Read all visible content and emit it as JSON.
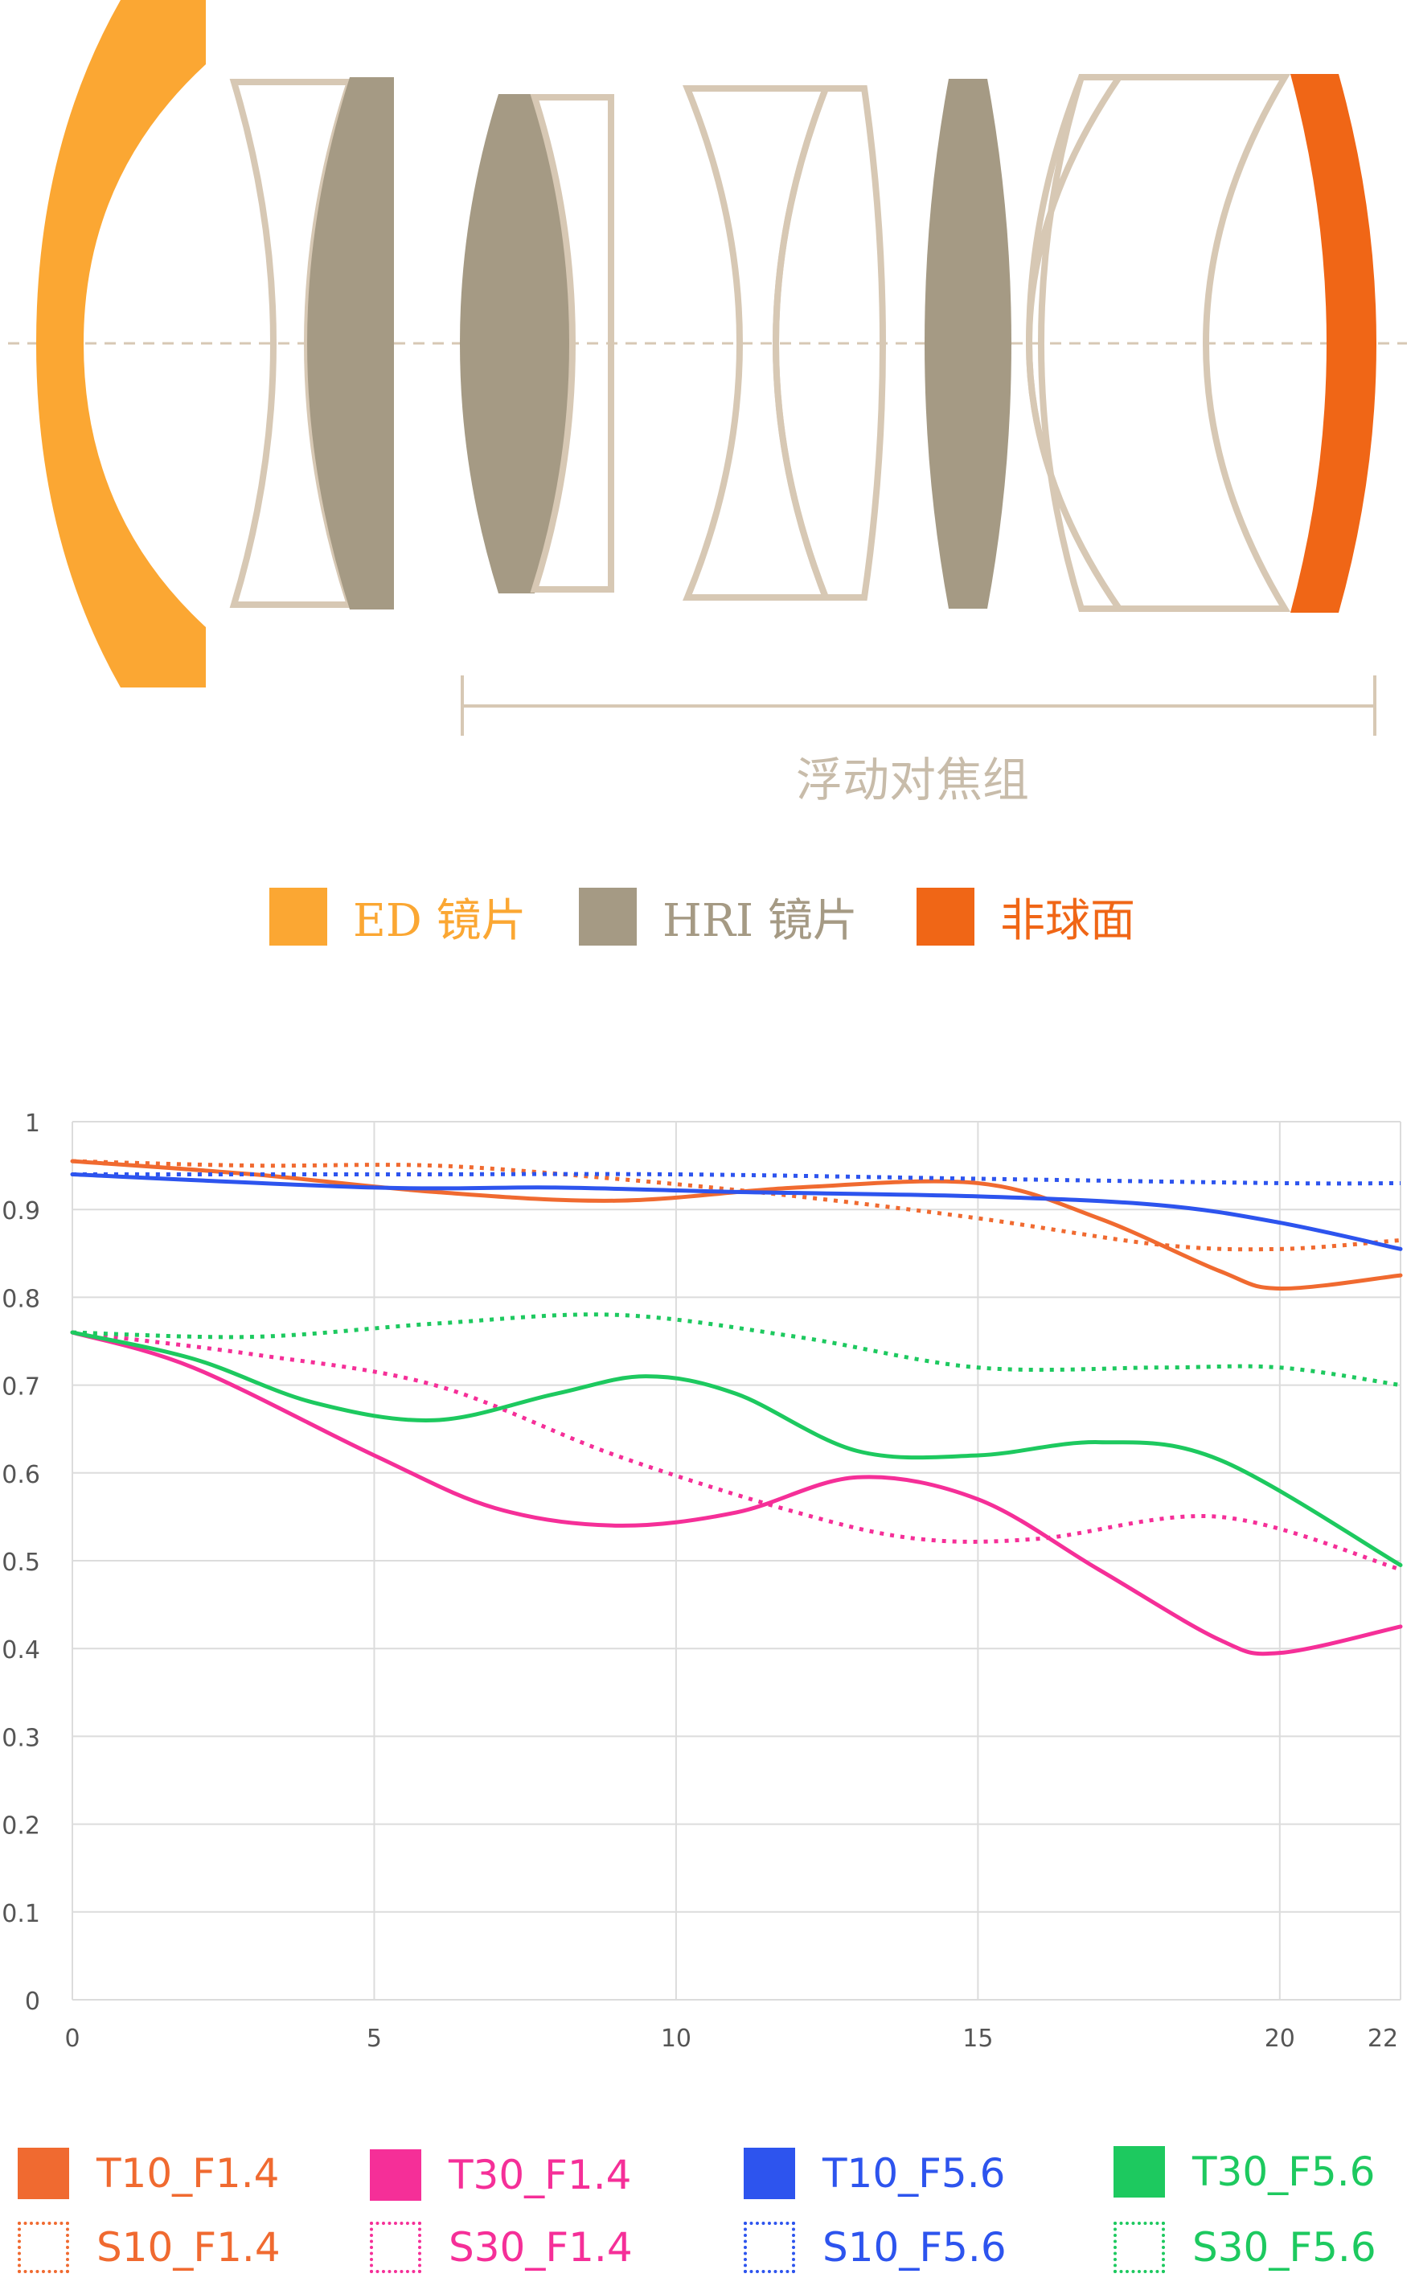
{
  "diagram": {
    "group_label": "浮动对焦组",
    "legend": [
      {
        "label": "ED 镜片",
        "color": "#fba733"
      },
      {
        "label": "HRI 镜片",
        "color": "#a59a84"
      },
      {
        "label": "非球面",
        "color": "#f06616"
      }
    ],
    "outline_color": "#d7c8b4"
  },
  "chart_data": {
    "type": "line",
    "x_ticks": [
      "0",
      "5",
      "10",
      "15",
      "20",
      "22"
    ],
    "y_ticks": [
      "0",
      "0.1",
      "0.2",
      "0.3",
      "0.4",
      "0.5",
      "0.6",
      "0.7",
      "0.8",
      "0.9",
      "1"
    ],
    "xlim": [
      0,
      22
    ],
    "ylim": [
      0,
      1
    ],
    "grid": true,
    "series": [
      {
        "name": "T10_F1.4",
        "color": "#f06a30",
        "style": "solid",
        "x": [
          0,
          3,
          6,
          9,
          12,
          15,
          17,
          19,
          20,
          22
        ],
        "y": [
          0.955,
          0.94,
          0.92,
          0.91,
          0.925,
          0.93,
          0.89,
          0.83,
          0.81,
          0.825
        ]
      },
      {
        "name": "S10_F1.4",
        "color": "#f06a30",
        "style": "dotted",
        "x": [
          0,
          3,
          6,
          9,
          12,
          15,
          18,
          20,
          22
        ],
        "y": [
          0.955,
          0.95,
          0.95,
          0.935,
          0.915,
          0.89,
          0.86,
          0.855,
          0.865
        ]
      },
      {
        "name": "T30_F1.4",
        "color": "#f52f98",
        "style": "solid",
        "x": [
          0,
          2,
          5,
          7,
          9,
          11,
          13,
          15,
          17,
          19,
          20,
          22
        ],
        "y": [
          0.76,
          0.72,
          0.62,
          0.56,
          0.54,
          0.555,
          0.595,
          0.57,
          0.49,
          0.41,
          0.395,
          0.425
        ]
      },
      {
        "name": "S30_F1.4",
        "color": "#f52f98",
        "style": "dotted",
        "x": [
          0,
          3,
          6,
          9,
          12,
          14,
          16,
          19,
          22
        ],
        "y": [
          0.76,
          0.735,
          0.7,
          0.62,
          0.555,
          0.525,
          0.525,
          0.55,
          0.49
        ]
      },
      {
        "name": "T10_F5.6",
        "color": "#2d54ee",
        "style": "solid",
        "x": [
          0,
          5,
          8,
          11,
          15,
          18,
          20,
          22
        ],
        "y": [
          0.94,
          0.925,
          0.925,
          0.92,
          0.915,
          0.905,
          0.885,
          0.855
        ]
      },
      {
        "name": "S10_F5.6",
        "color": "#2d54ee",
        "style": "dotted",
        "x": [
          0,
          5,
          10,
          15,
          20,
          22
        ],
        "y": [
          0.94,
          0.94,
          0.94,
          0.935,
          0.93,
          0.93
        ]
      },
      {
        "name": "T30_F5.6",
        "color": "#1dc95f",
        "style": "solid",
        "x": [
          0,
          2,
          4,
          6,
          8,
          9.5,
          11,
          13,
          15,
          17,
          19,
          22
        ],
        "y": [
          0.76,
          0.73,
          0.68,
          0.66,
          0.69,
          0.71,
          0.69,
          0.625,
          0.62,
          0.635,
          0.615,
          0.495
        ]
      },
      {
        "name": "S30_F5.6",
        "color": "#1dc95f",
        "style": "dotted",
        "x": [
          0,
          3,
          6,
          9,
          12,
          15,
          18,
          20,
          22
        ],
        "y": [
          0.76,
          0.755,
          0.77,
          0.78,
          0.755,
          0.72,
          0.72,
          0.72,
          0.7
        ]
      }
    ]
  }
}
